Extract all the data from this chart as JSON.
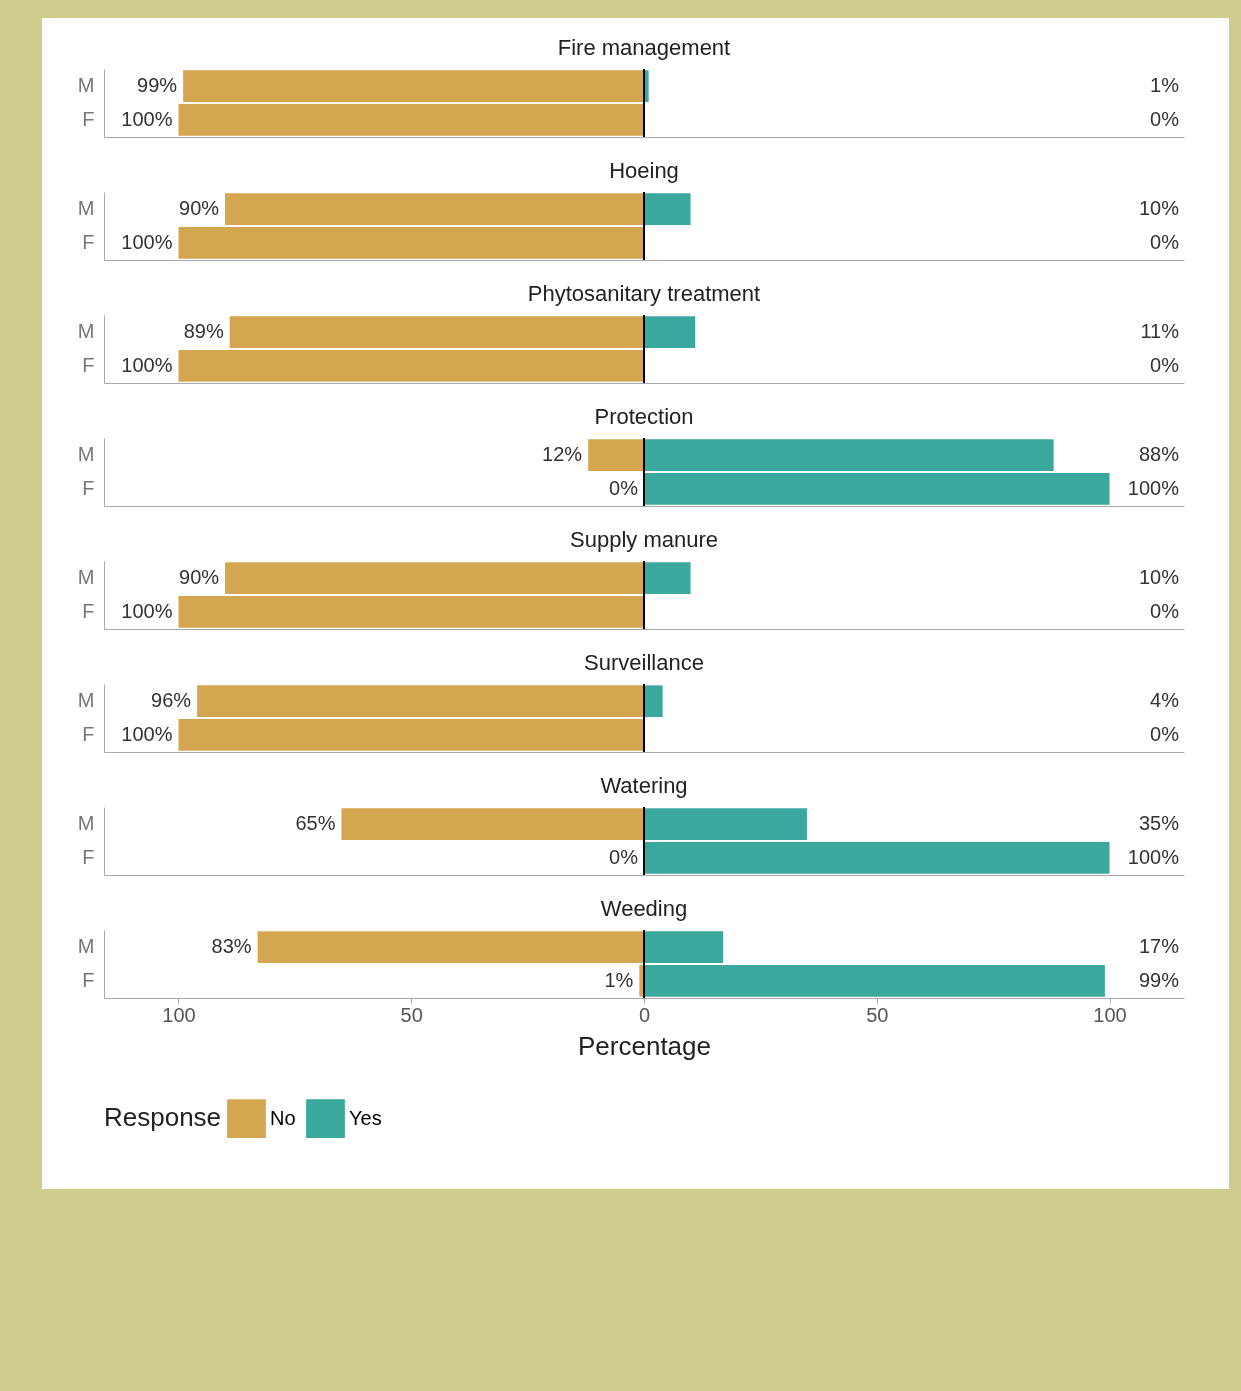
{
  "chart_data": [
    {
      "type": "bar",
      "orientation": "horizontal",
      "title": "Fire management",
      "categories": [
        "M",
        "F"
      ],
      "xlim": [
        -116,
        116
      ],
      "tick_labels": "y",
      "grid": false,
      "legend": false,
      "ref_lines": [
        {
          "axis": "x",
          "value": 0,
          "color": "#000000"
        }
      ],
      "series": [
        {
          "color": "#d4a650",
          "base": [
            -99,
            -100
          ],
          "values": [
            99,
            100
          ],
          "value_labels": [
            "99%",
            "100%"
          ]
        },
        {
          "color": "#3aa89d",
          "values": [
            1,
            0
          ],
          "value_labels": [
            "1%",
            "0%"
          ]
        }
      ]
    },
    {
      "type": "bar",
      "orientation": "horizontal",
      "title": "Hoeing",
      "categories": [
        "M",
        "F"
      ],
      "xlim": [
        -116,
        116
      ],
      "tick_labels": "y",
      "grid": false,
      "legend": false,
      "ref_lines": [
        {
          "axis": "x",
          "value": 0,
          "color": "#000000"
        }
      ],
      "series": [
        {
          "color": "#d4a650",
          "base": [
            -90,
            -100
          ],
          "values": [
            90,
            100
          ],
          "value_labels": [
            "90%",
            "100%"
          ]
        },
        {
          "color": "#3aa89d",
          "values": [
            10,
            0
          ],
          "value_labels": [
            "10%",
            "0%"
          ]
        }
      ]
    },
    {
      "type": "bar",
      "orientation": "horizontal",
      "title": "Phytosanitary treatment",
      "categories": [
        "M",
        "F"
      ],
      "xlim": [
        -116,
        116
      ],
      "tick_labels": "y",
      "grid": false,
      "legend": false,
      "ref_lines": [
        {
          "axis": "x",
          "value": 0,
          "color": "#000000"
        }
      ],
      "series": [
        {
          "color": "#d4a650",
          "base": [
            -89,
            -100
          ],
          "values": [
            89,
            100
          ],
          "value_labels": [
            "89%",
            "100%"
          ]
        },
        {
          "color": "#3aa89d",
          "values": [
            11,
            0
          ],
          "value_labels": [
            "11%",
            "0%"
          ]
        }
      ]
    },
    {
      "type": "bar",
      "orientation": "horizontal",
      "title": "Protection",
      "categories": [
        "M",
        "F"
      ],
      "xlim": [
        -116,
        116
      ],
      "tick_labels": "y",
      "grid": false,
      "legend": false,
      "ref_lines": [
        {
          "axis": "x",
          "value": 0,
          "color": "#000000"
        }
      ],
      "series": [
        {
          "color": "#d4a650",
          "base": [
            -12,
            null
          ],
          "values": [
            12,
            0
          ],
          "value_labels": [
            "12%",
            "0%"
          ]
        },
        {
          "color": "#3aa89d",
          "values": [
            88,
            100
          ],
          "value_labels": [
            "88%",
            "100%"
          ]
        }
      ]
    },
    {
      "type": "bar",
      "orientation": "horizontal",
      "title": "Supply manure",
      "categories": [
        "M",
        "F"
      ],
      "xlim": [
        -116,
        116
      ],
      "tick_labels": "y",
      "grid": false,
      "legend": false,
      "ref_lines": [
        {
          "axis": "x",
          "value": 0,
          "color": "#000000"
        }
      ],
      "series": [
        {
          "color": "#d4a650",
          "base": [
            -90,
            -100
          ],
          "values": [
            90,
            100
          ],
          "value_labels": [
            "90%",
            "100%"
          ]
        },
        {
          "color": "#3aa89d",
          "values": [
            10,
            0
          ],
          "value_labels": [
            "10%",
            "0%"
          ]
        }
      ]
    },
    {
      "type": "bar",
      "orientation": "horizontal",
      "title": "Surveillance",
      "categories": [
        "M",
        "F"
      ],
      "xlim": [
        -116,
        116
      ],
      "tick_labels": "y",
      "grid": false,
      "legend": false,
      "ref_lines": [
        {
          "axis": "x",
          "value": 0,
          "color": "#000000"
        }
      ],
      "series": [
        {
          "color": "#d4a650",
          "base": [
            -96,
            -100
          ],
          "values": [
            96,
            100
          ],
          "value_labels": [
            "96%",
            "100%"
          ]
        },
        {
          "color": "#3aa89d",
          "values": [
            4,
            0
          ],
          "value_labels": [
            "4%",
            "0%"
          ]
        }
      ]
    },
    {
      "type": "bar",
      "orientation": "horizontal",
      "title": "Watering",
      "categories": [
        "M",
        "F"
      ],
      "xlim": [
        -116,
        116
      ],
      "tick_labels": "y",
      "grid": false,
      "legend": false,
      "ref_lines": [
        {
          "axis": "x",
          "value": 0,
          "color": "#000000"
        }
      ],
      "series": [
        {
          "color": "#d4a650",
          "base": [
            -65,
            null
          ],
          "values": [
            65,
            0
          ],
          "value_labels": [
            "65%",
            "0%"
          ]
        },
        {
          "color": "#3aa89d",
          "values": [
            35,
            100
          ],
          "value_labels": [
            "35%",
            "100%"
          ]
        }
      ]
    },
    {
      "type": "bar",
      "orientation": "horizontal",
      "title": "Weeding",
      "categories": [
        "M",
        "F"
      ],
      "xlim": [
        -116,
        116
      ],
      "xticks": [
        {
          "value": -100,
          "label": "100"
        },
        {
          "value": -50,
          "label": "50"
        },
        0,
        50,
        100
      ],
      "xlabel": "Percentage",
      "grid": false,
      "legend": "bottom",
      "legend_title": "Response",
      "ref_lines": [
        {
          "axis": "x",
          "value": 0,
          "color": "#000000"
        }
      ],
      "series": [
        {
          "name": "No",
          "color": "#d4a650",
          "base": [
            -83,
            -1
          ],
          "values": [
            83,
            1
          ],
          "value_labels": [
            "83%",
            "1%"
          ]
        },
        {
          "name": "Yes",
          "color": "#3aa89d",
          "values": [
            17,
            99
          ],
          "value_labels": [
            "17%",
            "99%"
          ]
        }
      ]
    }
  ]
}
